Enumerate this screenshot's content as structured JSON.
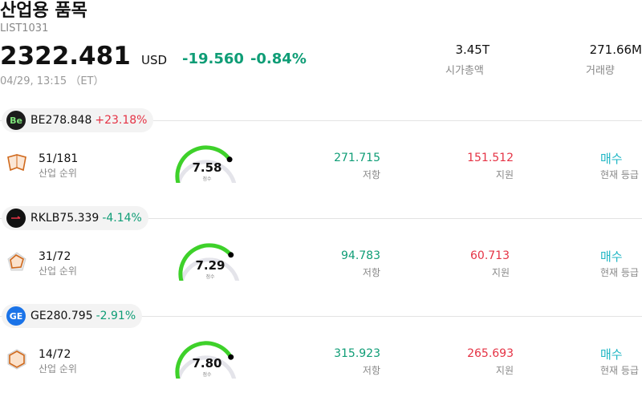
{
  "header": {
    "title": "산업용 품목",
    "code": "LIST1031",
    "price": "2322.481",
    "currency": "USD",
    "change": "-19.560",
    "change_pct": "-0.84%",
    "timestamp": "04/29, 13:15 （ET）",
    "market_cap": "3.45T",
    "market_cap_label": "시가총액",
    "volume": "271.66M",
    "volume_label": "거래량"
  },
  "labels": {
    "rank": "산업 순위",
    "score": "점수",
    "resistance": "저항",
    "support": "지원",
    "rating_status": "현재 등급"
  },
  "stocks": [
    {
      "ticker": "BE",
      "price": "278.848",
      "pct": "+23.18%",
      "direction": "up",
      "logo_text": "Be",
      "rank": "51/181",
      "score": "7.58",
      "score_fraction": 0.758,
      "resistance": "271.715",
      "support": "151.512",
      "rating": "매수"
    },
    {
      "ticker": "RKLB",
      "price": "75.339",
      "pct": "-4.14%",
      "direction": "down",
      "logo_text": "",
      "rank": "31/72",
      "score": "7.29",
      "score_fraction": 0.729,
      "resistance": "94.783",
      "support": "60.713",
      "rating": "매수"
    },
    {
      "ticker": "GE",
      "price": "280.795",
      "pct": "-2.91%",
      "direction": "down",
      "logo_text": "GE",
      "rank": "14/72",
      "score": "7.80",
      "score_fraction": 0.78,
      "resistance": "315.923",
      "support": "265.693",
      "rating": "매수"
    }
  ],
  "colors": {
    "up": "#e53345",
    "down": "#0f9d76",
    "gauge": "#3ed12a",
    "rating": "#1fb6c4"
  }
}
